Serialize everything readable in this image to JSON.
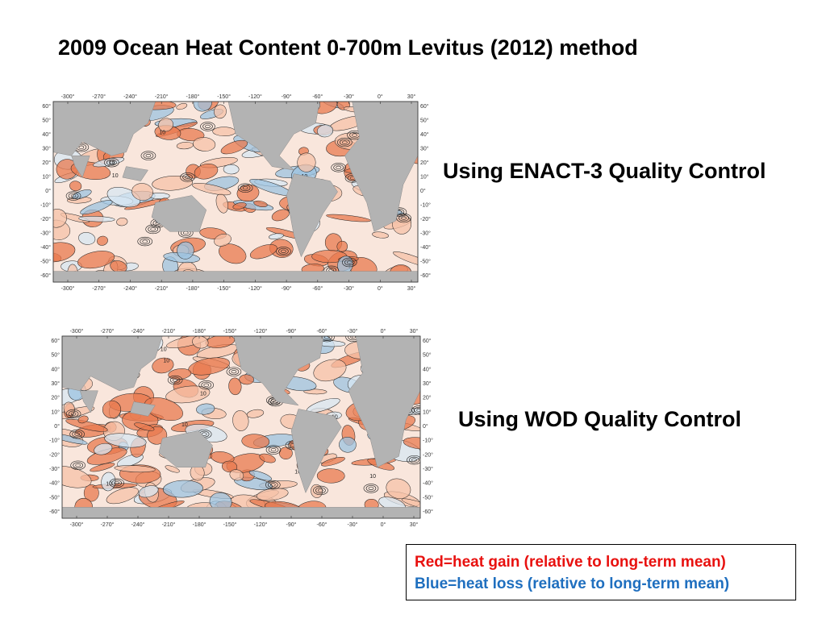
{
  "title": "2009 Ocean Heat Content 0-700m Levitus (2012)  method",
  "maps": [
    {
      "caption": "Using ENACT-3 Quality Control",
      "lon_ticks": [
        "-300°",
        "-270°",
        "-240°",
        "-210°",
        "-180°",
        "-150°",
        "-120°",
        "-90°",
        "-60°",
        "-30°",
        "0°",
        "30°"
      ],
      "lat_ticks": [
        "60°",
        "50°",
        "40°",
        "30°",
        "20°",
        "10°",
        "0°",
        "-10°",
        "-20°",
        "-30°",
        "-40°",
        "-50°",
        "-60°"
      ],
      "contour_label": "10"
    },
    {
      "caption": "Using WOD Quality Control",
      "lon_ticks": [
        "-300°",
        "-270°",
        "-240°",
        "-210°",
        "-180°",
        "-150°",
        "-120°",
        "-90°",
        "-60°",
        "-30°",
        "0°",
        "30°"
      ],
      "lat_ticks": [
        "60°",
        "50°",
        "40°",
        "30°",
        "20°",
        "10°",
        "0°",
        "-10°",
        "-20°",
        "-30°",
        "-40°",
        "-50°",
        "-60°"
      ],
      "contour_label": "10"
    }
  ],
  "legend": {
    "gain": "Red=heat gain (relative to long-term mean)",
    "loss": "Blue=heat loss (relative to long-term mean)",
    "gain_color": "#e8110f",
    "loss_color": "#1f6fbf"
  },
  "colors": {
    "warm": "#e8794f",
    "warm_light": "#f6c2a8",
    "cool": "#9cc3e0",
    "cool_light": "#d7e7f3",
    "land": "#b3b3b3"
  }
}
